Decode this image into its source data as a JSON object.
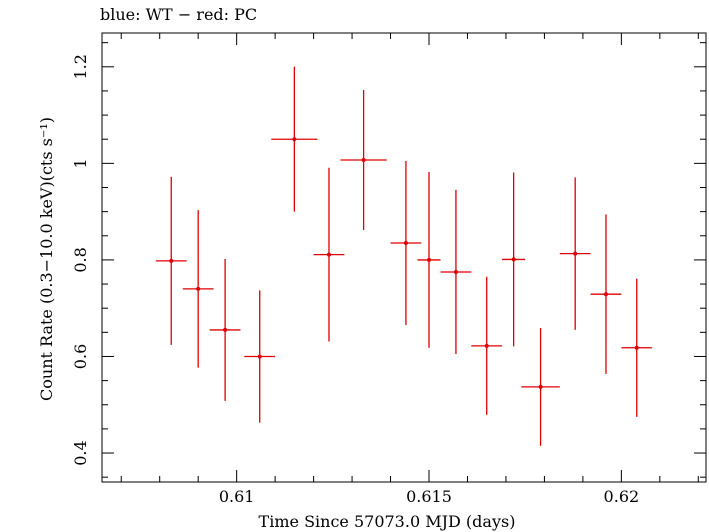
{
  "chart_data": {
    "type": "scatter",
    "title": "blue: WT − red: PC",
    "xlabel": "Time Since 57073.0 MJD (days)",
    "ylabel": "Count Rate (0.3−10.0 keV)(cts s⁻¹)",
    "xlim": [
      0.6065,
      0.6222
    ],
    "ylim": [
      0.34,
      1.27
    ],
    "x_ticks": [
      {
        "value": 0.61,
        "label": "0.61"
      },
      {
        "value": 0.615,
        "label": "0.615"
      },
      {
        "value": 0.62,
        "label": "0.62"
      }
    ],
    "y_ticks": [
      {
        "value": 0.4,
        "label": "0.4"
      },
      {
        "value": 0.6,
        "label": "0.6"
      },
      {
        "value": 0.8,
        "label": "0.8"
      },
      {
        "value": 1.0,
        "label": "1"
      },
      {
        "value": 1.2,
        "label": "1.2"
      }
    ],
    "grid": false,
    "series": [
      {
        "color": "#e00000",
        "points": [
          {
            "x": 0.6083,
            "xerr": 0.0004,
            "y": 0.798,
            "yerr": 0.174
          },
          {
            "x": 0.609,
            "xerr": 0.0004,
            "y": 0.74,
            "yerr": 0.163
          },
          {
            "x": 0.6097,
            "xerr": 0.0004,
            "y": 0.655,
            "yerr": 0.147
          },
          {
            "x": 0.6106,
            "xerr": 0.0004,
            "y": 0.6,
            "yerr": 0.137
          },
          {
            "x": 0.6115,
            "xerr": 0.0006,
            "y": 1.05,
            "yerr": 0.15
          },
          {
            "x": 0.6124,
            "xerr": 0.0004,
            "y": 0.811,
            "yerr": 0.18
          },
          {
            "x": 0.6133,
            "xerr": 0.0006,
            "y": 1.007,
            "yerr": 0.145
          },
          {
            "x": 0.6144,
            "xerr": 0.0004,
            "y": 0.835,
            "yerr": 0.17
          },
          {
            "x": 0.615,
            "xerr": 0.0003,
            "y": 0.8,
            "yerr": 0.182
          },
          {
            "x": 0.6157,
            "xerr": 0.0004,
            "y": 0.775,
            "yerr": 0.17
          },
          {
            "x": 0.6165,
            "xerr": 0.0004,
            "y": 0.622,
            "yerr": 0.143
          },
          {
            "x": 0.6172,
            "xerr": 0.0003,
            "y": 0.801,
            "yerr": 0.18
          },
          {
            "x": 0.6179,
            "xerr": 0.0005,
            "y": 0.537,
            "yerr": 0.122
          },
          {
            "x": 0.6188,
            "xerr": 0.0004,
            "y": 0.813,
            "yerr": 0.158
          },
          {
            "x": 0.6196,
            "xerr": 0.0004,
            "y": 0.729,
            "yerr": 0.165
          },
          {
            "x": 0.6204,
            "xerr": 0.0004,
            "y": 0.618,
            "yerr": 0.143
          }
        ]
      }
    ]
  }
}
